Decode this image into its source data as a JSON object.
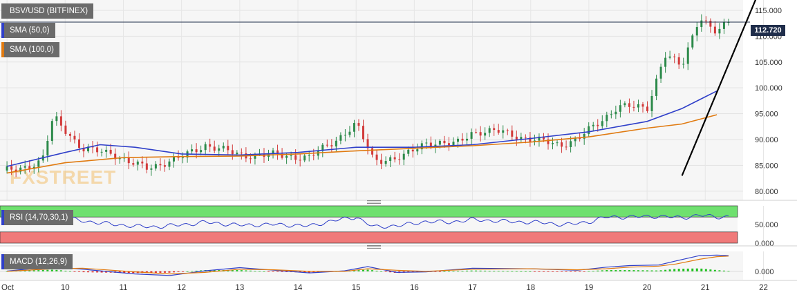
{
  "chart_data": [
    {
      "type": "candlestick",
      "title": "BSV/USD (BITFINEX)",
      "x_ticks": [
        "Oct",
        "10",
        "11",
        "12",
        "13",
        "14",
        "15",
        "16",
        "17",
        "18",
        "19",
        "20",
        "21",
        "22"
      ],
      "y_ticks": [
        "80.000",
        "85.000",
        "90.000",
        "95.000",
        "100.000",
        "105.000",
        "110.000",
        "115.000"
      ],
      "ylim": [
        78.5,
        117
      ],
      "last_price": "112.720",
      "grid": true,
      "ohlc_approx": [
        {
          "x": 0.0,
          "close": 84.0
        },
        {
          "x": 0.6,
          "close": 85.5
        },
        {
          "x": 0.8,
          "close": 94.5
        },
        {
          "x": 1.0,
          "close": 92.0
        },
        {
          "x": 1.3,
          "close": 88.0
        },
        {
          "x": 1.8,
          "close": 87.5
        },
        {
          "x": 2.1,
          "close": 85.5
        },
        {
          "x": 2.4,
          "close": 84.5
        },
        {
          "x": 3.0,
          "close": 86.5
        },
        {
          "x": 3.4,
          "close": 89.0
        },
        {
          "x": 4.0,
          "close": 87.0
        },
        {
          "x": 4.6,
          "close": 87.0
        },
        {
          "x": 5.2,
          "close": 86.5
        },
        {
          "x": 5.6,
          "close": 89.5
        },
        {
          "x": 6.0,
          "close": 93.0
        },
        {
          "x": 6.3,
          "close": 86.0
        },
        {
          "x": 6.8,
          "close": 86.5
        },
        {
          "x": 7.2,
          "close": 89.5
        },
        {
          "x": 7.7,
          "close": 89.0
        },
        {
          "x": 8.0,
          "close": 91.5
        },
        {
          "x": 8.5,
          "close": 91.5
        },
        {
          "x": 9.0,
          "close": 90.0
        },
        {
          "x": 9.5,
          "close": 89.0
        },
        {
          "x": 9.8,
          "close": 90.0
        },
        {
          "x": 10.2,
          "close": 93.5
        },
        {
          "x": 10.5,
          "close": 96.5
        },
        {
          "x": 11.0,
          "close": 96.0
        },
        {
          "x": 11.3,
          "close": 106.5
        },
        {
          "x": 11.6,
          "close": 104.0
        },
        {
          "x": 11.9,
          "close": 114.0
        },
        {
          "x": 12.2,
          "close": 110.5
        },
        {
          "x": 12.4,
          "close": 112.7
        }
      ],
      "series": [
        {
          "name": "SMA (50,0)",
          "color": "#2f3fc9",
          "values": [
            [
              0,
              84.8
            ],
            [
              1,
              87.5
            ],
            [
              1.6,
              89.0
            ],
            [
              2.2,
              88.5
            ],
            [
              3,
              87.2
            ],
            [
              4,
              87.0
            ],
            [
              5,
              87.5
            ],
            [
              6,
              88.5
            ],
            [
              7,
              88.5
            ],
            [
              8,
              89.0
            ],
            [
              9,
              90.2
            ],
            [
              10,
              91.5
            ],
            [
              11,
              93.5
            ],
            [
              11.6,
              96.0
            ],
            [
              12.2,
              99.4
            ]
          ]
        },
        {
          "name": "SMA (100,0)",
          "color": "#e07a10",
          "values": [
            [
              0,
              83.5
            ],
            [
              1,
              85.5
            ],
            [
              2,
              86.5
            ],
            [
              3,
              86.7
            ],
            [
              4,
              86.8
            ],
            [
              5,
              87.2
            ],
            [
              6,
              87.8
            ],
            [
              7,
              88.3
            ],
            [
              8,
              88.8
            ],
            [
              9,
              89.5
            ],
            [
              10,
              90.5
            ],
            [
              11,
              92.2
            ],
            [
              11.6,
              93.0
            ],
            [
              12.2,
              94.8
            ]
          ]
        }
      ],
      "trendline": {
        "start": [
          11.6,
          83.0
        ],
        "end": [
          12.9,
          118.0
        ],
        "color": "#000000"
      }
    },
    {
      "type": "line",
      "title": "RSI (14,70,30,1)",
      "y_ticks": [
        "50.000",
        "0.000"
      ],
      "ylim": [
        0,
        100
      ],
      "bands": [
        {
          "from": 70,
          "to": 100,
          "color": "#6fe06f"
        },
        {
          "from": 0,
          "to": 30,
          "color": "#f07a7a"
        }
      ],
      "series": [
        {
          "name": "RSI",
          "color": "#2f3fc9",
          "values": [
            [
              0,
              55
            ],
            [
              0.6,
              58
            ],
            [
              0.8,
              77
            ],
            [
              1.2,
              62
            ],
            [
              1.6,
              54
            ],
            [
              2.2,
              45
            ],
            [
              2.6,
              44
            ],
            [
              3.2,
              52
            ],
            [
              3.4,
              56
            ],
            [
              4,
              48
            ],
            [
              4.6,
              50
            ],
            [
              5.2,
              46
            ],
            [
              5.6,
              60
            ],
            [
              6,
              70
            ],
            [
              6.3,
              43
            ],
            [
              6.8,
              48
            ],
            [
              7.2,
              58
            ],
            [
              7.6,
              56
            ],
            [
              8,
              63
            ],
            [
              8.6,
              58
            ],
            [
              9.2,
              55
            ],
            [
              9.6,
              49
            ],
            [
              10,
              57
            ],
            [
              10.3,
              70
            ],
            [
              10.6,
              70
            ],
            [
              11.2,
              72
            ],
            [
              11.6,
              68
            ],
            [
              11.9,
              75
            ],
            [
              12.2,
              70
            ],
            [
              12.4,
              71
            ]
          ]
        }
      ]
    },
    {
      "type": "line",
      "title": "MACD (12,26,9)",
      "y_ticks": [
        "0.000"
      ],
      "ylim": [
        -1.6,
        3.8
      ],
      "series": [
        {
          "name": "MACD",
          "color": "#2f3fc9",
          "values": [
            [
              0,
              0.05
            ],
            [
              0.8,
              0.9
            ],
            [
              1.3,
              0.4
            ],
            [
              2.2,
              -0.5
            ],
            [
              2.8,
              -0.8
            ],
            [
              3.4,
              0.1
            ],
            [
              4.0,
              0.7
            ],
            [
              4.6,
              0.2
            ],
            [
              5.2,
              -0.3
            ],
            [
              5.8,
              0.1
            ],
            [
              6.2,
              0.9
            ],
            [
              6.7,
              -0.2
            ],
            [
              7.2,
              -0.1
            ],
            [
              8.0,
              0.6
            ],
            [
              9.0,
              0.5
            ],
            [
              9.8,
              0.2
            ],
            [
              10.3,
              0.8
            ],
            [
              10.7,
              1.1
            ],
            [
              11.2,
              1.2
            ],
            [
              11.5,
              2.0
            ],
            [
              11.9,
              3.0
            ],
            [
              12.2,
              3.1
            ],
            [
              12.4,
              3.0
            ]
          ]
        },
        {
          "name": "Signal",
          "color": "#e07a10",
          "values": [
            [
              0,
              0.0
            ],
            [
              0.8,
              0.5
            ],
            [
              1.3,
              0.6
            ],
            [
              2.2,
              -0.1
            ],
            [
              2.8,
              -0.5
            ],
            [
              3.4,
              -0.2
            ],
            [
              4.0,
              0.4
            ],
            [
              4.6,
              0.3
            ],
            [
              5.2,
              0.0
            ],
            [
              5.8,
              0.0
            ],
            [
              6.2,
              0.5
            ],
            [
              6.7,
              0.2
            ],
            [
              7.2,
              0.0
            ],
            [
              8.0,
              0.4
            ],
            [
              9.0,
              0.5
            ],
            [
              9.8,
              0.3
            ],
            [
              10.3,
              0.5
            ],
            [
              10.7,
              0.8
            ],
            [
              11.2,
              1.0
            ],
            [
              11.5,
              1.4
            ],
            [
              11.9,
              2.3
            ],
            [
              12.2,
              2.8
            ],
            [
              12.4,
              2.9
            ]
          ]
        }
      ],
      "histogram_colors": {
        "positive": "#22c022",
        "negative": "#e02020"
      }
    }
  ],
  "legend": {
    "pair": "BSV/USD (BITFINEX)",
    "sma50": "SMA (50,0)",
    "sma100": "SMA (100,0)",
    "rsi": "RSI (14,70,30,1)",
    "macd": "MACD (12,26,9)"
  },
  "watermark": "FXSTREET",
  "colors": {
    "bull": "#2c8a4a",
    "bear": "#d23a3a",
    "sma50": "#2f3fc9",
    "sma100": "#e07a10",
    "price_line": "#1f2d4a",
    "watermark": "#f0a020"
  }
}
